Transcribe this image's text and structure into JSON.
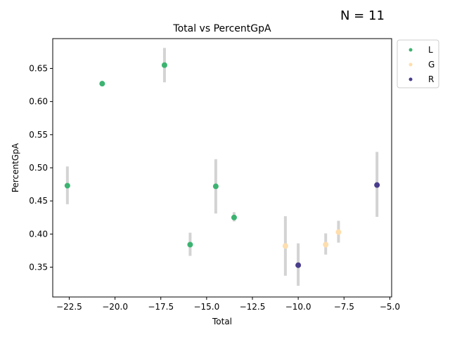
{
  "annotation": "N = 11",
  "chart_data": {
    "type": "scatter",
    "title": "Total vs PercentGpA",
    "xlabel": "Total",
    "ylabel": "PercentGpA",
    "xlim": [
      -23.4,
      -4.9
    ],
    "ylim": [
      0.305,
      0.695
    ],
    "xticks": [
      -22.5,
      -20.0,
      -17.5,
      -15.0,
      -12.5,
      -10.0,
      -7.5,
      -5.0
    ],
    "xtick_labels": [
      "−22.5",
      "−20.0",
      "−17.5",
      "−15.0",
      "−12.5",
      "−10.0",
      "−7.5",
      "−5.0"
    ],
    "yticks": [
      0.35,
      0.4,
      0.45,
      0.5,
      0.55,
      0.6,
      0.65
    ],
    "ytick_labels": [
      "0.35",
      "0.40",
      "0.45",
      "0.50",
      "0.55",
      "0.60",
      "0.65"
    ],
    "grid": false,
    "legend_position": "outside-top-right",
    "error_bar_color": "#d3d3d3",
    "series": [
      {
        "name": "L",
        "color": "#3cb371",
        "points": [
          {
            "x": -22.6,
            "y": 0.473,
            "err_low": 0.445,
            "err_high": 0.502
          },
          {
            "x": -20.7,
            "y": 0.627
          },
          {
            "x": -17.3,
            "y": 0.655,
            "err_low": 0.629,
            "err_high": 0.681
          },
          {
            "x": -15.9,
            "y": 0.384,
            "err_low": 0.367,
            "err_high": 0.402
          },
          {
            "x": -14.5,
            "y": 0.472,
            "err_low": 0.431,
            "err_high": 0.513
          },
          {
            "x": -13.5,
            "y": 0.425,
            "err_low": 0.419,
            "err_high": 0.433
          }
        ]
      },
      {
        "name": "G",
        "color": "#ffdead",
        "points": [
          {
            "x": -10.7,
            "y": 0.382,
            "err_low": 0.337,
            "err_high": 0.427
          },
          {
            "x": -8.5,
            "y": 0.384,
            "err_low": 0.369,
            "err_high": 0.401
          },
          {
            "x": -7.8,
            "y": 0.403,
            "err_low": 0.387,
            "err_high": 0.42
          }
        ]
      },
      {
        "name": "R",
        "color": "#483d8b",
        "points": [
          {
            "x": -10.0,
            "y": 0.353,
            "err_low": 0.322,
            "err_high": 0.386
          },
          {
            "x": -5.7,
            "y": 0.474,
            "err_low": 0.426,
            "err_high": 0.524
          }
        ]
      }
    ]
  }
}
